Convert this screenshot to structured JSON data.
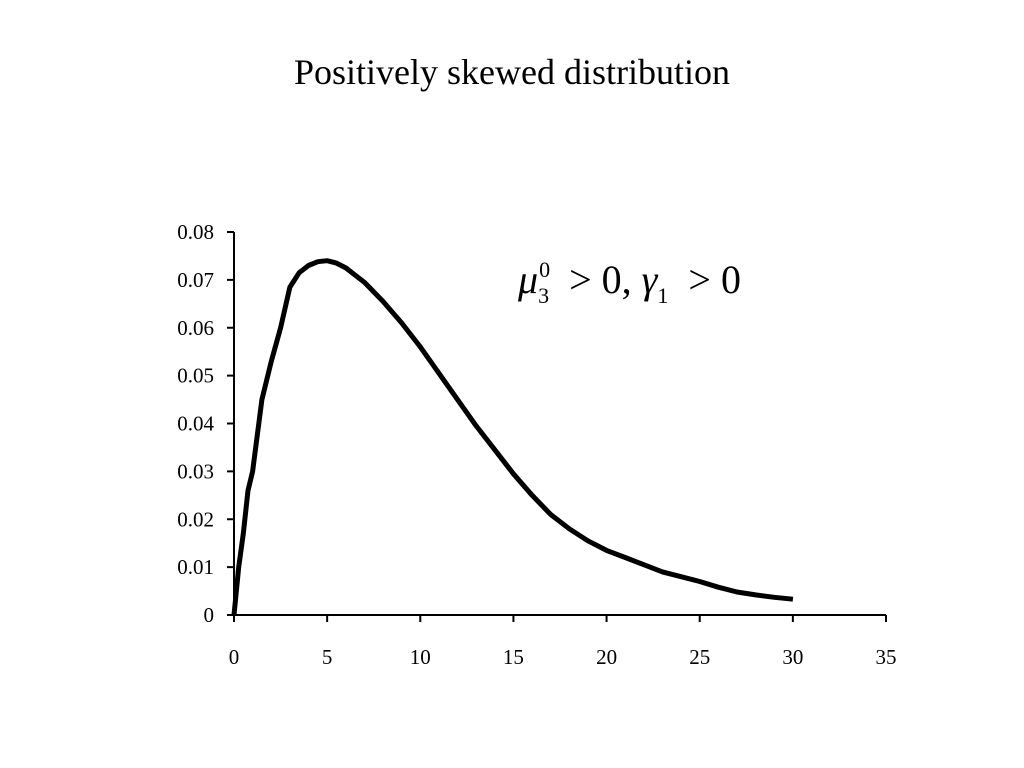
{
  "title": "Positively skewed distribution",
  "annotation": {
    "mu": "μ",
    "mu_sup": "0",
    "mu_sub": "3",
    "op1": ">",
    "val1": "0,",
    "gamma": "γ",
    "gamma_sub": "1",
    "op2": ">",
    "val2": "0"
  },
  "colors": {
    "curve": "#000000",
    "axis": "#000000",
    "background": "#ffffff"
  },
  "chart_data": {
    "type": "line",
    "title": "Positively skewed distribution",
    "xlabel": "",
    "ylabel": "",
    "xlim": [
      0,
      35
    ],
    "ylim": [
      0,
      0.08
    ],
    "grid": false,
    "legend": "none",
    "x_ticks": [
      0,
      5,
      10,
      15,
      20,
      25,
      30,
      35
    ],
    "x_tick_labels": [
      "0",
      "5",
      "10",
      "15",
      "20",
      "25",
      "30",
      "35"
    ],
    "y_ticks": [
      0,
      0.01,
      0.02,
      0.03,
      0.04,
      0.05,
      0.06,
      0.07,
      0.08
    ],
    "y_tick_labels": [
      "0",
      "0.01",
      "0.02",
      "0.03",
      "0.04",
      "0.05",
      "0.06",
      "0.07",
      "0.08"
    ],
    "series": [
      {
        "x": [
          0,
          0.25,
          0.5,
          0.75,
          1,
          1.5,
          2,
          2.5,
          3,
          3.5,
          4,
          4.5,
          5,
          5.5,
          6,
          7,
          8,
          9,
          10,
          11,
          12,
          13,
          14,
          15,
          16,
          17,
          18,
          19,
          20,
          21,
          22,
          23,
          24,
          25,
          26,
          27,
          28,
          29,
          30
        ],
        "values": [
          0,
          0.01,
          0.017,
          0.026,
          0.03,
          0.045,
          0.053,
          0.06,
          0.0685,
          0.0715,
          0.073,
          0.0738,
          0.074,
          0.0735,
          0.0725,
          0.0695,
          0.0655,
          0.061,
          0.056,
          0.0505,
          0.045,
          0.0395,
          0.0345,
          0.0295,
          0.025,
          0.021,
          0.018,
          0.0155,
          0.0135,
          0.012,
          0.0105,
          0.009,
          0.008,
          0.007,
          0.0058,
          0.0048,
          0.0042,
          0.0037,
          0.0033
        ]
      }
    ]
  }
}
